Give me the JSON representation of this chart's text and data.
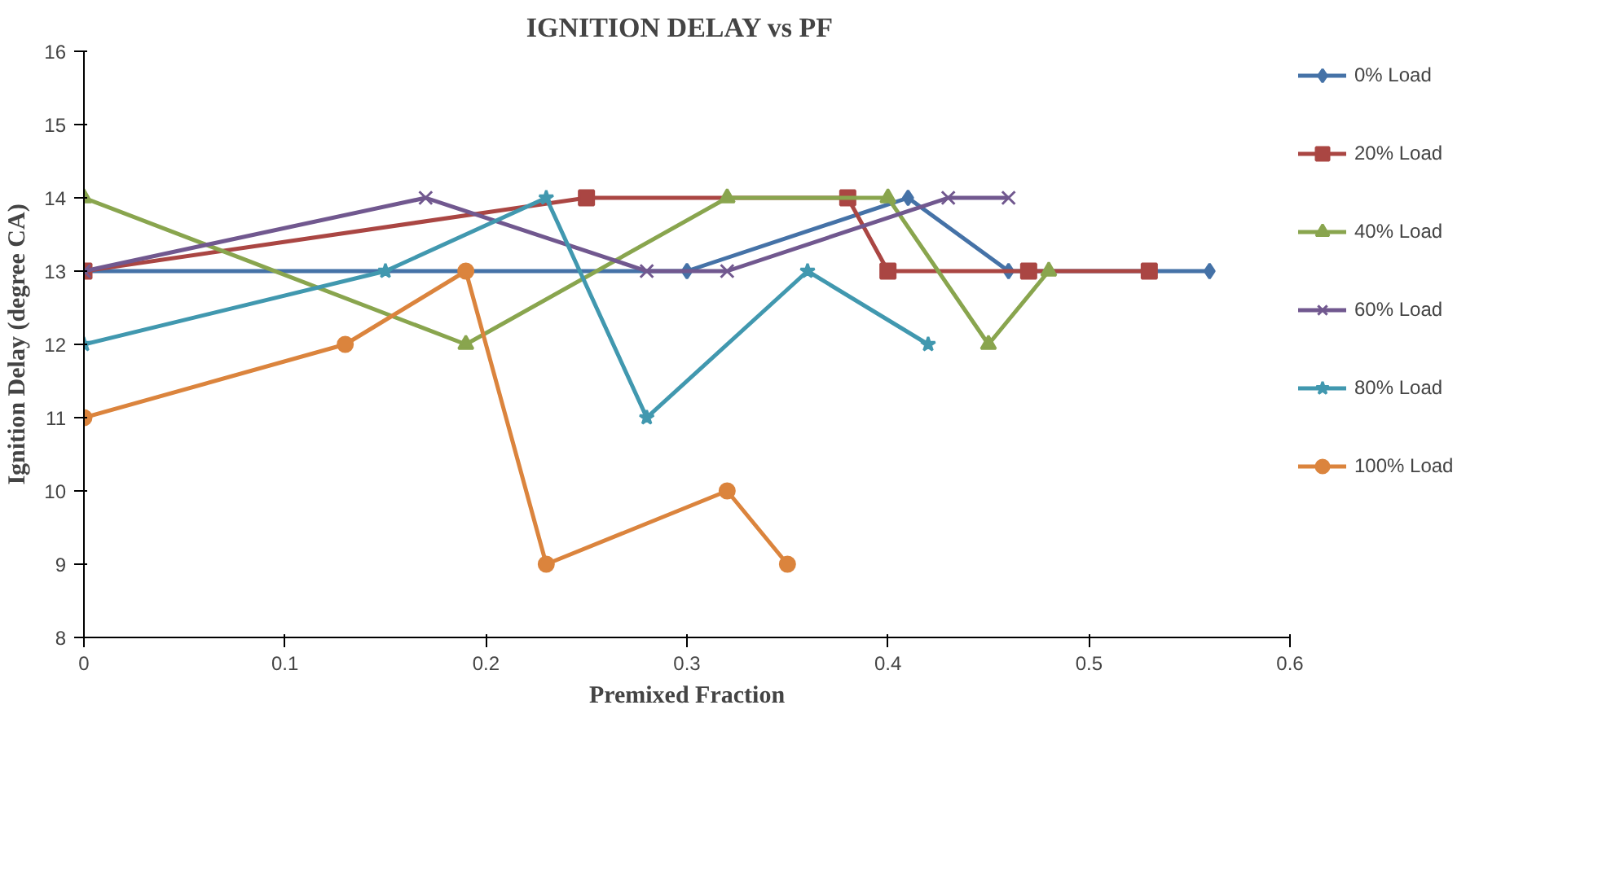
{
  "chart_data": {
    "type": "line",
    "title": "IGNITION DELAY  vs  PF",
    "xlabel": "Premixed Fraction",
    "ylabel": "Ignition Delay (degree CA)",
    "xlim": [
      0,
      0.6
    ],
    "xticks": [
      0,
      0.1,
      0.2,
      0.3,
      0.4,
      0.5,
      0.6
    ],
    "ylim": [
      8,
      16
    ],
    "yticks": [
      8,
      9,
      10,
      11,
      12,
      13,
      14,
      15,
      16
    ],
    "grid": false,
    "legend": "right",
    "line_style": "solid",
    "series": [
      {
        "name": "0% Load",
        "color": "#4572a7",
        "marker": "diamond",
        "x": [
          0,
          0.3,
          0.41,
          0.46,
          0.56
        ],
        "values": [
          13,
          13,
          14,
          13,
          13
        ]
      },
      {
        "name": "20% Load",
        "color": "#aa4643",
        "marker": "square",
        "x": [
          0,
          0.25,
          0.38,
          0.4,
          0.47,
          0.53
        ],
        "values": [
          13,
          14,
          14,
          13,
          13,
          13
        ]
      },
      {
        "name": "40% Load",
        "color": "#89a54e",
        "marker": "triangle",
        "x": [
          0,
          0.19,
          0.32,
          0.4,
          0.45,
          0.48
        ],
        "values": [
          14,
          12,
          14,
          14,
          12,
          13
        ]
      },
      {
        "name": "60% Load",
        "color": "#71588f",
        "marker": "cross",
        "x": [
          0,
          0.17,
          0.28,
          0.32,
          0.43,
          0.46
        ],
        "values": [
          13,
          14,
          13,
          13,
          14,
          14
        ]
      },
      {
        "name": "80% Load",
        "color": "#4198af",
        "marker": "star",
        "x": [
          0,
          0.15,
          0.23,
          0.28,
          0.36,
          0.42
        ],
        "values": [
          12,
          13,
          14,
          11,
          13,
          12
        ]
      },
      {
        "name": "100% Load",
        "color": "#db843d",
        "marker": "circle",
        "x": [
          0,
          0.13,
          0.19,
          0.23,
          0.32,
          0.35
        ],
        "values": [
          11,
          12,
          13,
          9,
          10,
          9
        ]
      }
    ]
  }
}
